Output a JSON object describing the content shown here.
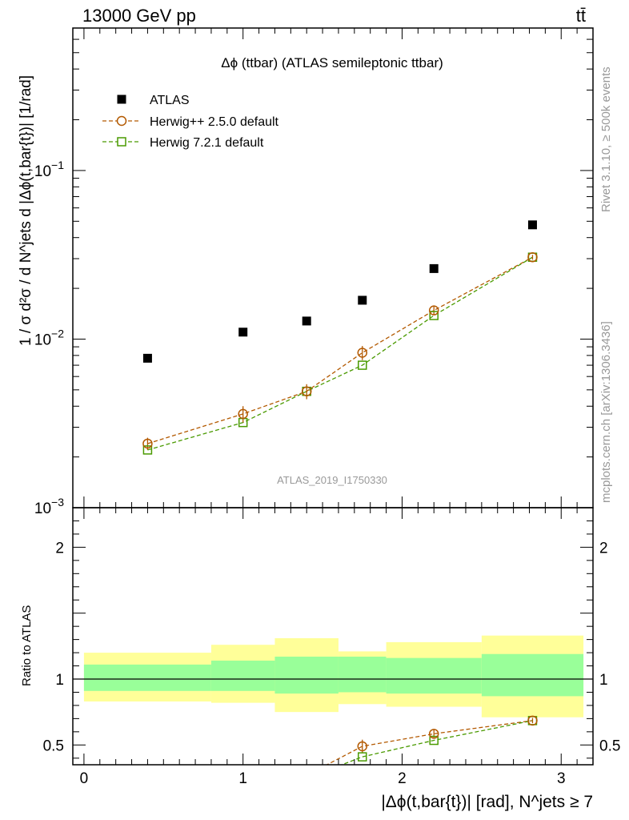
{
  "header": {
    "left": "13000 GeV pp",
    "right": "tt̄"
  },
  "side_labels": {
    "rivet": "Rivet 3.1.10, ≥ 500k events",
    "mcplots": "mcplots.cern.ch [arXiv:1306.3436]"
  },
  "colors": {
    "atlas": "#000000",
    "herwig25": "#b35900",
    "herwig72": "#4a9a00",
    "band_inner": "#99ff99",
    "band_outer": "#ffff99"
  },
  "chart_data": [
    {
      "type": "scatter",
      "title": "Δϕ (ttbar) (ATLAS semileptonic ttbar)",
      "watermark": "ATLAS_2019_I1750330",
      "ylabel": "1 / σ d²σ / d N^jets d |Δϕ(t,bar{t})| [1/rad]",
      "yscale": "log",
      "ylim": [
        0.001,
        0.7
      ],
      "xlim": [
        -0.07,
        3.2
      ],
      "yticks": [
        {
          "value": 0.1,
          "label": "10",
          "exp": "−1"
        },
        {
          "value": 0.01,
          "label": "10",
          "exp": "−2"
        },
        {
          "value": 0.001,
          "label": "10",
          "exp": "−3"
        }
      ],
      "legend": [
        {
          "name": "ATLAS",
          "marker": "filled-square"
        },
        {
          "name": "Herwig++ 2.5.0 default",
          "marker": "open-circle"
        },
        {
          "name": "Herwig 7.2.1 default",
          "marker": "open-square"
        }
      ],
      "series": [
        {
          "name": "ATLAS",
          "x": [
            0.4,
            1.0,
            1.4,
            1.75,
            2.2,
            2.82
          ],
          "y": [
            0.0077,
            0.011,
            0.0128,
            0.017,
            0.0262,
            0.0476
          ]
        },
        {
          "name": "Herwig++ 2.5.0 default",
          "x": [
            0.4,
            1.0,
            1.4,
            1.75,
            2.2,
            2.82
          ],
          "y": [
            0.0024,
            0.0036,
            0.0049,
            0.0083,
            0.0148,
            0.0306
          ],
          "err": [
            0.0002,
            0.0004,
            0.0005,
            0.0008,
            0.0008,
            0.001
          ]
        },
        {
          "name": "Herwig 7.2.1 default",
          "x": [
            0.4,
            1.0,
            1.4,
            1.75,
            2.2,
            2.82
          ],
          "y": [
            0.0022,
            0.0032,
            0.0049,
            0.007,
            0.0138,
            0.0306
          ]
        }
      ]
    },
    {
      "type": "scatter",
      "ylabel": "Ratio to ATLAS",
      "xlabel": "|Δϕ(t,bar{t})| [rad], N^jets ≥ 7",
      "xlim": [
        -0.07,
        3.2
      ],
      "ylim": [
        0.35,
        2.3
      ],
      "xticks": [
        0,
        1,
        2,
        3
      ],
      "yticks": [
        0.5,
        1,
        2
      ],
      "bands": [
        {
          "x0": 0.0,
          "x1": 0.8,
          "inner": [
            0.91,
            1.11
          ],
          "outer": [
            0.83,
            1.2
          ]
        },
        {
          "x0": 0.8,
          "x1": 1.2,
          "inner": [
            0.91,
            1.14
          ],
          "outer": [
            0.82,
            1.26
          ]
        },
        {
          "x0": 1.2,
          "x1": 1.6,
          "inner": [
            0.89,
            1.17
          ],
          "outer": [
            0.75,
            1.31
          ]
        },
        {
          "x0": 1.6,
          "x1": 1.9,
          "inner": [
            0.9,
            1.17
          ],
          "outer": [
            0.81,
            1.21
          ]
        },
        {
          "x0": 1.9,
          "x1": 2.5,
          "inner": [
            0.89,
            1.16
          ],
          "outer": [
            0.79,
            1.28
          ]
        },
        {
          "x0": 2.5,
          "x1": 3.14,
          "inner": [
            0.87,
            1.19
          ],
          "outer": [
            0.71,
            1.33
          ]
        }
      ],
      "series": [
        {
          "name": "Herwig++ 2.5.0 default",
          "x": [
            1.75,
            2.2,
            2.82
          ],
          "y": [
            0.49,
            0.585,
            0.685
          ],
          "err": [
            0.05,
            0.03,
            0.02
          ],
          "line_from": {
            "x": 1.48,
            "y": 0.32
          }
        },
        {
          "name": "Herwig 7.2.1 default",
          "x": [
            1.75,
            2.2,
            2.82
          ],
          "y": [
            0.41,
            0.535,
            0.685
          ],
          "line_from": {
            "x": 1.6,
            "y": 0.34
          }
        }
      ]
    }
  ]
}
